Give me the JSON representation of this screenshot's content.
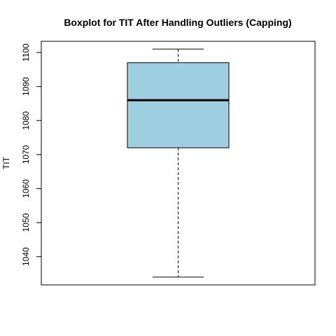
{
  "chart_data": {
    "type": "boxplot",
    "title": "Boxplot for TIT After Handling Outliers (Capping)",
    "xlabel": "",
    "ylabel": "TIT",
    "ylim": [
      1031.7,
      1103.3
    ],
    "yticks": [
      1040,
      1050,
      1060,
      1070,
      1080,
      1090,
      1100
    ],
    "grid": false,
    "legend": "none",
    "box": {
      "min": 1034,
      "q1": 1072,
      "median": 1086,
      "q3": 1097,
      "max": 1101
    },
    "colors": {
      "box_fill": "#9ecfe0",
      "line": "#000000"
    }
  }
}
